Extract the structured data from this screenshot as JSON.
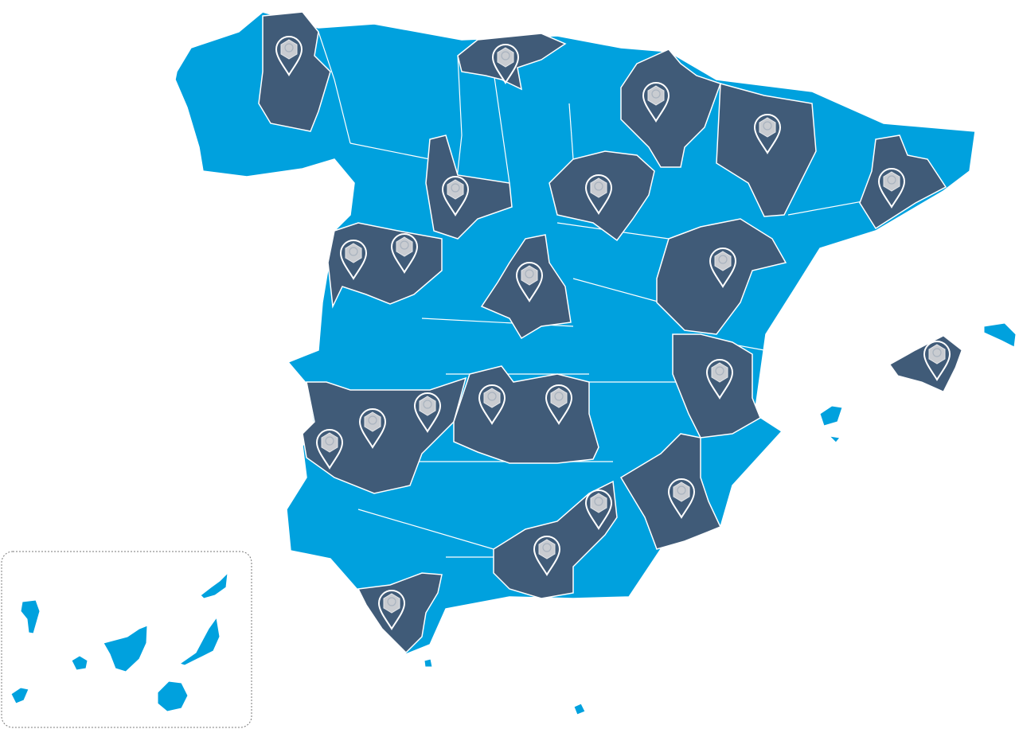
{
  "map": {
    "colors": {
      "region_default": "#00a1de",
      "region_highlighted": "#405b78",
      "border": "#ffffff",
      "marker_outline": "#ffffff",
      "marker_badge": "#c9ccd1",
      "inset_border": "#7a7a7a",
      "background": "#ffffff"
    },
    "marker_icon": "location-pin-badge-icon",
    "highlighted_region_count": 19,
    "marker_count": 22,
    "inset": "canary-islands-inset"
  }
}
